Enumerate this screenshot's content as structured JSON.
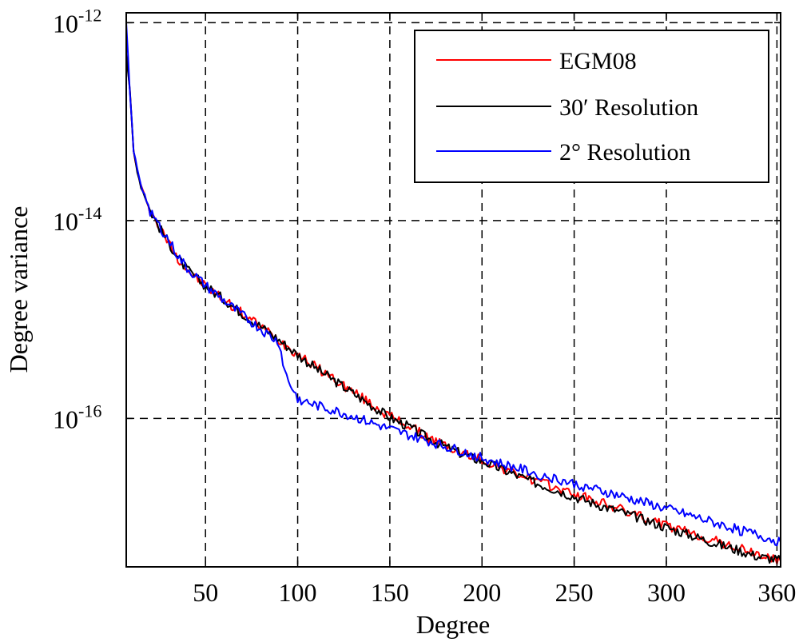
{
  "chart_data": {
    "type": "line",
    "title": "",
    "xlabel": "Degree",
    "ylabel": "Degree variance",
    "xlim": [
      7,
      362
    ],
    "ylim_log10": [
      -17.5,
      -11.9
    ],
    "y_scale": "log",
    "grid": true,
    "grid_style": "dashed",
    "legend_position": "top-right",
    "x_ticks": [
      {
        "value": 50,
        "label": "50"
      },
      {
        "value": 100,
        "label": "100"
      },
      {
        "value": 150,
        "label": "150"
      },
      {
        "value": 200,
        "label": "200"
      },
      {
        "value": 250,
        "label": "250"
      },
      {
        "value": 300,
        "label": "300"
      },
      {
        "value": 360,
        "label": "360"
      }
    ],
    "y_ticks": [
      {
        "value": 1e-12,
        "base": "10",
        "exponent": "-12"
      },
      {
        "value": 1e-14,
        "base": "10",
        "exponent": "-14"
      },
      {
        "value": 1e-16,
        "base": "10",
        "exponent": "-16"
      }
    ],
    "series": [
      {
        "name": "EGM08",
        "color": "#ff0000",
        "anchors": [
          [
            7,
            5e-13
          ],
          [
            9,
            2e-13
          ],
          [
            11,
            5e-14
          ],
          [
            13,
            3.2e-14
          ],
          [
            15,
            2.2e-14
          ],
          [
            18,
            1.6e-14
          ],
          [
            20,
            1.25e-14
          ],
          [
            25,
            8.5e-15
          ],
          [
            30,
            6e-15
          ],
          [
            35,
            4.2e-15
          ],
          [
            40,
            3.2e-15
          ],
          [
            45,
            2.6e-15
          ],
          [
            50,
            2.2e-15
          ],
          [
            55,
            1.85e-15
          ],
          [
            60,
            1.6e-15
          ],
          [
            70,
            1.15e-15
          ],
          [
            80,
            8.5e-16
          ],
          [
            90,
            6.2e-16
          ],
          [
            100,
            4.5e-16
          ],
          [
            110,
            3.3e-16
          ],
          [
            120,
            2.5e-16
          ],
          [
            130,
            1.85e-16
          ],
          [
            140,
            1.4e-16
          ],
          [
            150,
            1.05e-16
          ],
          [
            160,
            8.5e-17
          ],
          [
            170,
            6.5e-17
          ],
          [
            180,
            5.3e-17
          ],
          [
            190,
            4.4e-17
          ],
          [
            200,
            3.8e-17
          ],
          [
            210,
            3.2e-17
          ],
          [
            220,
            2.7e-17
          ],
          [
            230,
            2.3e-17
          ],
          [
            240,
            2e-17
          ],
          [
            250,
            1.72e-17
          ],
          [
            260,
            1.5e-17
          ],
          [
            270,
            1.3e-17
          ],
          [
            280,
            1.12e-17
          ],
          [
            290,
            9.6e-18
          ],
          [
            300,
            8.2e-18
          ],
          [
            310,
            7.2e-18
          ],
          [
            320,
            6.3e-18
          ],
          [
            330,
            5.5e-18
          ],
          [
            340,
            4.8e-18
          ],
          [
            350,
            4.2e-18
          ],
          [
            362,
            3.6e-18
          ]
        ]
      },
      {
        "name": "30′ Resolution",
        "color": "#000000",
        "anchors": [
          [
            7,
            5e-13
          ],
          [
            9,
            2e-13
          ],
          [
            11,
            5e-14
          ],
          [
            13,
            3.2e-14
          ],
          [
            15,
            2.2e-14
          ],
          [
            18,
            1.6e-14
          ],
          [
            20,
            1.25e-14
          ],
          [
            25,
            8.5e-15
          ],
          [
            30,
            6e-15
          ],
          [
            35,
            4.2e-15
          ],
          [
            40,
            3.2e-15
          ],
          [
            45,
            2.6e-15
          ],
          [
            50,
            2.2e-15
          ],
          [
            55,
            1.85e-15
          ],
          [
            60,
            1.6e-15
          ],
          [
            70,
            1.15e-15
          ],
          [
            80,
            8.5e-16
          ],
          [
            90,
            6.2e-16
          ],
          [
            100,
            4.4e-16
          ],
          [
            110,
            3.2e-16
          ],
          [
            120,
            2.4e-16
          ],
          [
            130,
            1.8e-16
          ],
          [
            140,
            1.35e-16
          ],
          [
            150,
            1.02e-16
          ],
          [
            160,
            8.3e-17
          ],
          [
            170,
            6.4e-17
          ],
          [
            180,
            5.2e-17
          ],
          [
            190,
            4.3e-17
          ],
          [
            200,
            3.7e-17
          ],
          [
            210,
            3.1e-17
          ],
          [
            220,
            2.6e-17
          ],
          [
            230,
            2.2e-17
          ],
          [
            240,
            1.9e-17
          ],
          [
            250,
            1.62e-17
          ],
          [
            260,
            1.4e-17
          ],
          [
            270,
            1.22e-17
          ],
          [
            280,
            1.06e-17
          ],
          [
            290,
            9.2e-18
          ],
          [
            300,
            7.9e-18
          ],
          [
            310,
            6.9e-18
          ],
          [
            320,
            6e-18
          ],
          [
            330,
            5.2e-18
          ],
          [
            340,
            4.6e-18
          ],
          [
            350,
            4e-18
          ],
          [
            362,
            3.7e-18
          ]
        ]
      },
      {
        "name": "2° Resolution",
        "color": "#0000ff",
        "anchors": [
          [
            7,
            1e-12
          ],
          [
            9,
            2e-13
          ],
          [
            11,
            5e-14
          ],
          [
            13,
            3.4e-14
          ],
          [
            15,
            2.3e-14
          ],
          [
            18,
            1.6e-14
          ],
          [
            20,
            1.25e-14
          ],
          [
            25,
            8.8e-15
          ],
          [
            30,
            6.3e-15
          ],
          [
            35,
            4.4e-15
          ],
          [
            40,
            3.3e-15
          ],
          [
            45,
            2.7e-15
          ],
          [
            50,
            2.2e-15
          ],
          [
            55,
            1.85e-15
          ],
          [
            60,
            1.55e-15
          ],
          [
            70,
            1.1e-15
          ],
          [
            80,
            8e-16
          ],
          [
            85,
            6.8e-16
          ],
          [
            90,
            5.8e-16
          ],
          [
            93,
            3e-16
          ],
          [
            96,
            2.2e-16
          ],
          [
            100,
            1.6e-16
          ],
          [
            110,
            1.35e-16
          ],
          [
            120,
            1.2e-16
          ],
          [
            130,
            1.05e-16
          ],
          [
            140,
            9e-17
          ],
          [
            150,
            7.8e-17
          ],
          [
            160,
            6.8e-17
          ],
          [
            170,
            6e-17
          ],
          [
            180,
            5.2e-17
          ],
          [
            190,
            4.6e-17
          ],
          [
            200,
            4e-17
          ],
          [
            210,
            3.5e-17
          ],
          [
            220,
            3.1e-17
          ],
          [
            230,
            2.75e-17
          ],
          [
            240,
            2.45e-17
          ],
          [
            250,
            2.2e-17
          ],
          [
            260,
            1.95e-17
          ],
          [
            270,
            1.75e-17
          ],
          [
            280,
            1.55e-17
          ],
          [
            290,
            1.38e-17
          ],
          [
            300,
            1.22e-17
          ],
          [
            310,
            1.08e-17
          ],
          [
            320,
            9.5e-18
          ],
          [
            330,
            8.4e-18
          ],
          [
            340,
            7.4e-18
          ],
          [
            350,
            6.6e-18
          ],
          [
            362,
            5.6e-18
          ]
        ]
      }
    ]
  }
}
